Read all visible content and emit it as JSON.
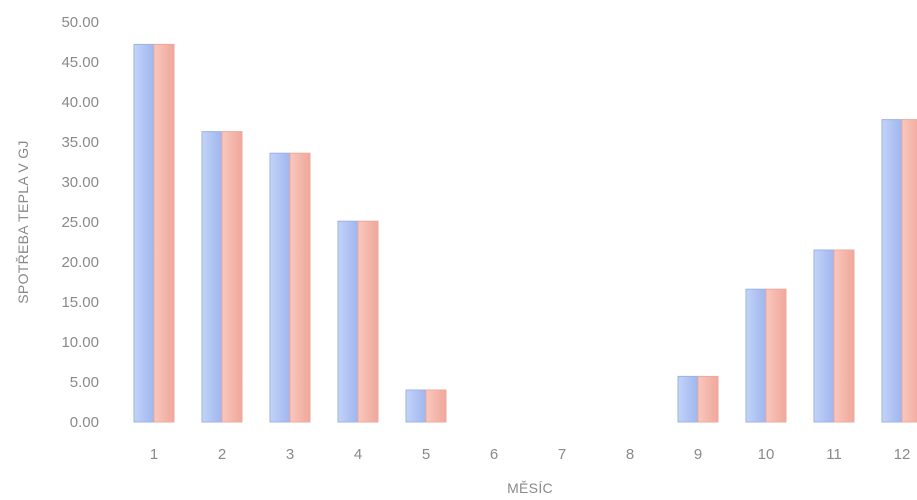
{
  "chart_data": {
    "type": "bar",
    "xlabel": "MĚSÍC",
    "ylabel": "SPOTŘEBA TEPLA V GJ",
    "ylim": [
      0,
      50
    ],
    "y_ticks": [
      "0.00",
      "5.00",
      "10.00",
      "15.00",
      "20.00",
      "25.00",
      "30.00",
      "35.00",
      "40.00",
      "45.00",
      "50.00"
    ],
    "categories": [
      "1",
      "2",
      "3",
      "4",
      "5",
      "6",
      "7",
      "8",
      "9",
      "10",
      "11",
      "12"
    ],
    "grid": false,
    "legend": "none",
    "series": [
      {
        "values": [
          47.2,
          36.3,
          33.6,
          25.1,
          4.0,
          0,
          0,
          0,
          5.7,
          16.6,
          21.5,
          37.8
        ],
        "color": "#a9bdf0"
      },
      {
        "values": [
          47.2,
          36.3,
          33.6,
          25.1,
          4.0,
          0,
          0,
          0,
          5.7,
          16.6,
          21.5,
          37.8
        ],
        "color": "#f4b2a8"
      }
    ]
  }
}
